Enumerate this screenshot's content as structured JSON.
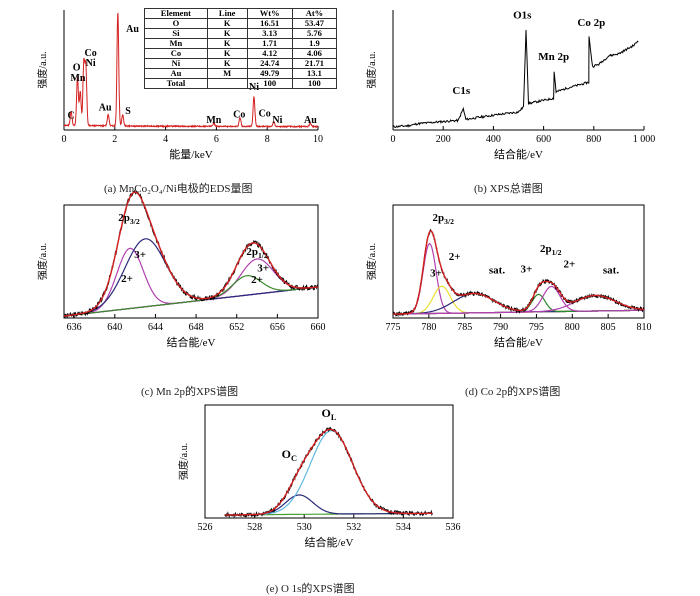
{
  "captions": {
    "a": "(a)  MnCo₂O₄/Ni电极的EDS量图",
    "b": "(b)  XPS总谱图",
    "c": "(c)  Mn 2p的XPS谱图",
    "d": "(d)  Co 2p的XPS谱图",
    "e": "(e)  O 1s的XPS谱图"
  },
  "eds_table": {
    "headers": [
      "Element",
      "Line",
      "Wt%",
      "At%"
    ],
    "rows": [
      [
        "O",
        "K",
        "16.51",
        "53.47"
      ],
      [
        "Si",
        "K",
        "3.13",
        "5.76"
      ],
      [
        "Mn",
        "K",
        "1.71",
        "1.9"
      ],
      [
        "Co",
        "K",
        "4.12",
        "4.06"
      ],
      [
        "Ni",
        "K",
        "24.74",
        "21.71"
      ],
      [
        "Au",
        "M",
        "49.79",
        "13.1"
      ],
      [
        "Total",
        "",
        "100",
        "100"
      ]
    ]
  },
  "chart_data": [
    {
      "id": "a",
      "type": "line",
      "xlabel": "能量/keV",
      "ylabel": "强度/a.u.",
      "xlim": [
        0,
        10
      ],
      "xticks": [
        0,
        2,
        4,
        6,
        8,
        10
      ],
      "colors": {
        "spectrum": "#d42020",
        "axis": "#000000"
      },
      "peaks": [
        {
          "x": 0.28,
          "y": 0.12
        },
        {
          "x": 0.53,
          "y": 0.42
        },
        {
          "x": 0.64,
          "y": 0.3
        },
        {
          "x": 0.78,
          "y": 0.55
        },
        {
          "x": 0.86,
          "y": 0.52
        },
        {
          "x": 1.74,
          "y": 0.1
        },
        {
          "x": 2.12,
          "y": 1.0
        },
        {
          "x": 2.31,
          "y": 0.1
        },
        {
          "x": 5.9,
          "y": 0.03
        },
        {
          "x": 6.93,
          "y": 0.08
        },
        {
          "x": 7.48,
          "y": 0.26
        },
        {
          "x": 8.26,
          "y": 0.04
        },
        {
          "x": 9.7,
          "y": 0.03
        }
      ],
      "annotations": [
        {
          "text": "C",
          "x": 0.28,
          "y": 0.1
        },
        {
          "text": "O",
          "x": 0.5,
          "y": 0.52
        },
        {
          "text": "Mn",
          "x": 0.55,
          "y": 0.43
        },
        {
          "text": "Co",
          "x": 1.05,
          "y": 0.65
        },
        {
          "text": "Ni",
          "x": 1.05,
          "y": 0.56
        },
        {
          "text": "Au",
          "x": 1.62,
          "y": 0.17
        },
        {
          "text": "Au",
          "x": 2.7,
          "y": 0.86
        },
        {
          "text": "S",
          "x": 2.52,
          "y": 0.14
        },
        {
          "text": "Mn",
          "x": 5.9,
          "y": 0.06
        },
        {
          "text": "Co",
          "x": 6.9,
          "y": 0.11
        },
        {
          "text": "Ni",
          "x": 7.48,
          "y": 0.35
        },
        {
          "text": "Co",
          "x": 7.9,
          "y": 0.12
        },
        {
          "text": "Ni",
          "x": 8.4,
          "y": 0.06
        },
        {
          "text": "Au",
          "x": 9.7,
          "y": 0.06
        }
      ]
    },
    {
      "id": "b",
      "type": "line",
      "xlabel": "结合能/eV",
      "ylabel": "强度/a.u.",
      "xlim": [
        0,
        1000
      ],
      "xticks": [
        0,
        200,
        400,
        600,
        800,
        1000
      ],
      "xticklabels": [
        "0",
        "200",
        "400",
        "600",
        "800",
        "1 000"
      ],
      "colors": {
        "spectrum": "#000000"
      },
      "points": [
        [
          0,
          0.03
        ],
        [
          60,
          0.04
        ],
        [
          100,
          0.06
        ],
        [
          200,
          0.08
        ],
        [
          260,
          0.09
        ],
        [
          280,
          0.2
        ],
        [
          290,
          0.1
        ],
        [
          400,
          0.14
        ],
        [
          500,
          0.17
        ],
        [
          520,
          0.22
        ],
        [
          530,
          0.95
        ],
        [
          540,
          0.25
        ],
        [
          600,
          0.28
        ],
        [
          640,
          0.3
        ],
        [
          642,
          0.55
        ],
        [
          650,
          0.36
        ],
        [
          700,
          0.4
        ],
        [
          780,
          0.45
        ],
        [
          781,
          0.88
        ],
        [
          795,
          0.6
        ],
        [
          820,
          0.62
        ],
        [
          860,
          0.7
        ],
        [
          900,
          0.72
        ],
        [
          960,
          0.8
        ],
        [
          980,
          0.85
        ]
      ],
      "annotations": [
        {
          "text": "C1s",
          "x": 272,
          "y": 0.34
        },
        {
          "text": "O1s",
          "x": 515,
          "y": 1.05
        },
        {
          "text": "Mn 2p",
          "x": 640,
          "y": 0.66
        },
        {
          "text": "Co 2p",
          "x": 790,
          "y": 0.98
        }
      ]
    },
    {
      "id": "c",
      "type": "line",
      "xlabel": "结合能/eV",
      "ylabel": "强度/a.u.",
      "xlim": [
        635,
        660
      ],
      "xticks": [
        636,
        640,
        644,
        648,
        652,
        656,
        660
      ],
      "colors": {
        "raw": "#000000",
        "fit": "#d42020",
        "mn3": "#2a2a7a",
        "mn2": "#b040b0",
        "sat": "#3a8a2a",
        "bg": "#5a3aa0"
      },
      "peaks": [
        {
          "label": "Mn2+ 2p3/2",
          "center": 641.5,
          "height": 0.62
        },
        {
          "label": "Mn3+ 2p3/2",
          "center": 643.0,
          "height": 0.7
        },
        {
          "label": "Mn3+ 2p1/2",
          "center": 654.0,
          "height": 0.38
        },
        {
          "label": "Mn2+ 2p1/2",
          "center": 653.2,
          "height": 0.22
        }
      ],
      "annotations": [
        {
          "text": "2p3/2",
          "x": 641.4,
          "y": 1.0
        },
        {
          "text": "3+",
          "x": 642.5,
          "y": 0.62
        },
        {
          "text": "2+",
          "x": 641.2,
          "y": 0.37
        },
        {
          "text": "2p1/2",
          "x": 654.0,
          "y": 0.65
        },
        {
          "text": "3+",
          "x": 654.6,
          "y": 0.48
        },
        {
          "text": "2+",
          "x": 654.0,
          "y": 0.36
        }
      ]
    },
    {
      "id": "d",
      "type": "line",
      "xlabel": "结合能/eV",
      "ylabel": "强度/a.u.",
      "xlim": [
        775,
        810
      ],
      "xticks": [
        775,
        780,
        785,
        790,
        795,
        800,
        805,
        810
      ],
      "colors": {
        "raw": "#000000",
        "fit": "#d42020",
        "co3": "#b040b0",
        "co2": "#e8e030",
        "sat": "#2a2a7a",
        "green": "#2a8a2a",
        "bg": "#e0b020"
      },
      "annotations": [
        {
          "text": "2p3/2",
          "x": 782,
          "y": 1.0
        },
        {
          "text": "2+",
          "x": 783.6,
          "y": 0.6
        },
        {
          "text": "3+",
          "x": 781,
          "y": 0.43
        },
        {
          "text": "sat.",
          "x": 789.5,
          "y": 0.46
        },
        {
          "text": "2p1/2",
          "x": 797,
          "y": 0.68
        },
        {
          "text": "3+",
          "x": 793.6,
          "y": 0.47
        },
        {
          "text": "2+",
          "x": 799.6,
          "y": 0.52
        },
        {
          "text": "sat.",
          "x": 805.4,
          "y": 0.46
        }
      ]
    },
    {
      "id": "e",
      "type": "line",
      "xlabel": "结合能/eV",
      "ylabel": "强度/a.u.",
      "xlim": [
        526,
        536
      ],
      "xticks": [
        526,
        528,
        530,
        532,
        534,
        536
      ],
      "colors": {
        "raw": "#000000",
        "fit": "#d42020",
        "ol": "#60b8e0",
        "oc": "#2a2a7a",
        "bg": "#4aa030"
      },
      "annotations": [
        {
          "text": "OL",
          "x": 531.0,
          "y": 1.04
        },
        {
          "text": "OC",
          "x": 529.4,
          "y": 0.62
        }
      ]
    }
  ]
}
